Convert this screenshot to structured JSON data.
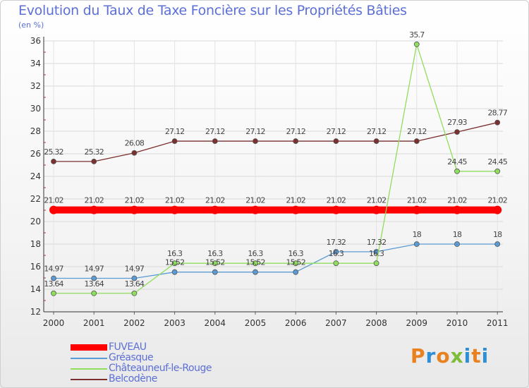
{
  "header": {
    "title": "Evolution du Taux de Taxe Foncière sur les Propriétés Bâties",
    "unit": "(en %)"
  },
  "logo": {
    "text": "Proxiti",
    "colors": [
      "#e8811f",
      "#2f8fd4",
      "#e8811f",
      "#7dbd3a",
      "#2f8fd4",
      "#e8811f",
      "#2f8fd4"
    ]
  },
  "chart_data": {
    "type": "line",
    "title": "Evolution du Taux de Taxe Foncière sur les Propriétés Bâties",
    "ylabel": "(en %)",
    "xlabel": "",
    "categories": [
      "2000",
      "2001",
      "2002",
      "2003",
      "2004",
      "2005",
      "2006",
      "2007",
      "2008",
      "2009",
      "2010",
      "2011"
    ],
    "ylim": [
      12,
      36
    ],
    "yticks": [
      "12",
      "14",
      "16",
      "18",
      "20",
      "22",
      "24",
      "26",
      "28",
      "30",
      "32",
      "34",
      "36"
    ],
    "legend_position": "bottom-left",
    "series": [
      {
        "name": "FUVEAU",
        "color": "#ff0000",
        "values": [
          21.02,
          21.02,
          21.02,
          21.02,
          21.02,
          21.02,
          21.02,
          21.02,
          21.02,
          21.02,
          21.02,
          21.02
        ],
        "labels": [
          "21.02",
          "21.02",
          "21.02",
          "21.02",
          "21.02",
          "21.02",
          "21.02",
          "21.02",
          "21.02",
          "21.02",
          "21.02",
          "21.02"
        ]
      },
      {
        "name": "Gréasque",
        "color": "#5b9bd5",
        "values": [
          14.97,
          14.97,
          14.97,
          15.52,
          15.52,
          15.52,
          15.52,
          17.32,
          17.32,
          18,
          18,
          18
        ],
        "labels": [
          "14.97",
          "14.97",
          "14.97",
          "15.52",
          "15.52",
          "15.52",
          "15.52",
          "17.32",
          "17.32",
          "18",
          "18",
          "18"
        ]
      },
      {
        "name": "Châteauneuf-le-Rouge",
        "color": "#8fde5c",
        "values": [
          13.64,
          13.64,
          13.64,
          16.3,
          16.3,
          16.3,
          16.3,
          16.3,
          16.3,
          35.7,
          24.45,
          24.45
        ],
        "labels": [
          "13.64",
          "13.64",
          "13.64",
          "16.3",
          "16.3",
          "16.3",
          "16.3",
          "16.3",
          "16.3",
          "35.7",
          "24.45",
          "24.45"
        ]
      },
      {
        "name": "Belcodène",
        "color": "#7b2f2f",
        "values": [
          25.32,
          25.32,
          26.08,
          27.12,
          27.12,
          27.12,
          27.12,
          27.12,
          27.12,
          27.12,
          27.93,
          28.77
        ],
        "labels": [
          "25.32",
          "25.32",
          "26.08",
          "27.12",
          "27.12",
          "27.12",
          "27.12",
          "27.12",
          "27.12",
          "27.12",
          "27.93",
          "28.77"
        ]
      }
    ]
  }
}
